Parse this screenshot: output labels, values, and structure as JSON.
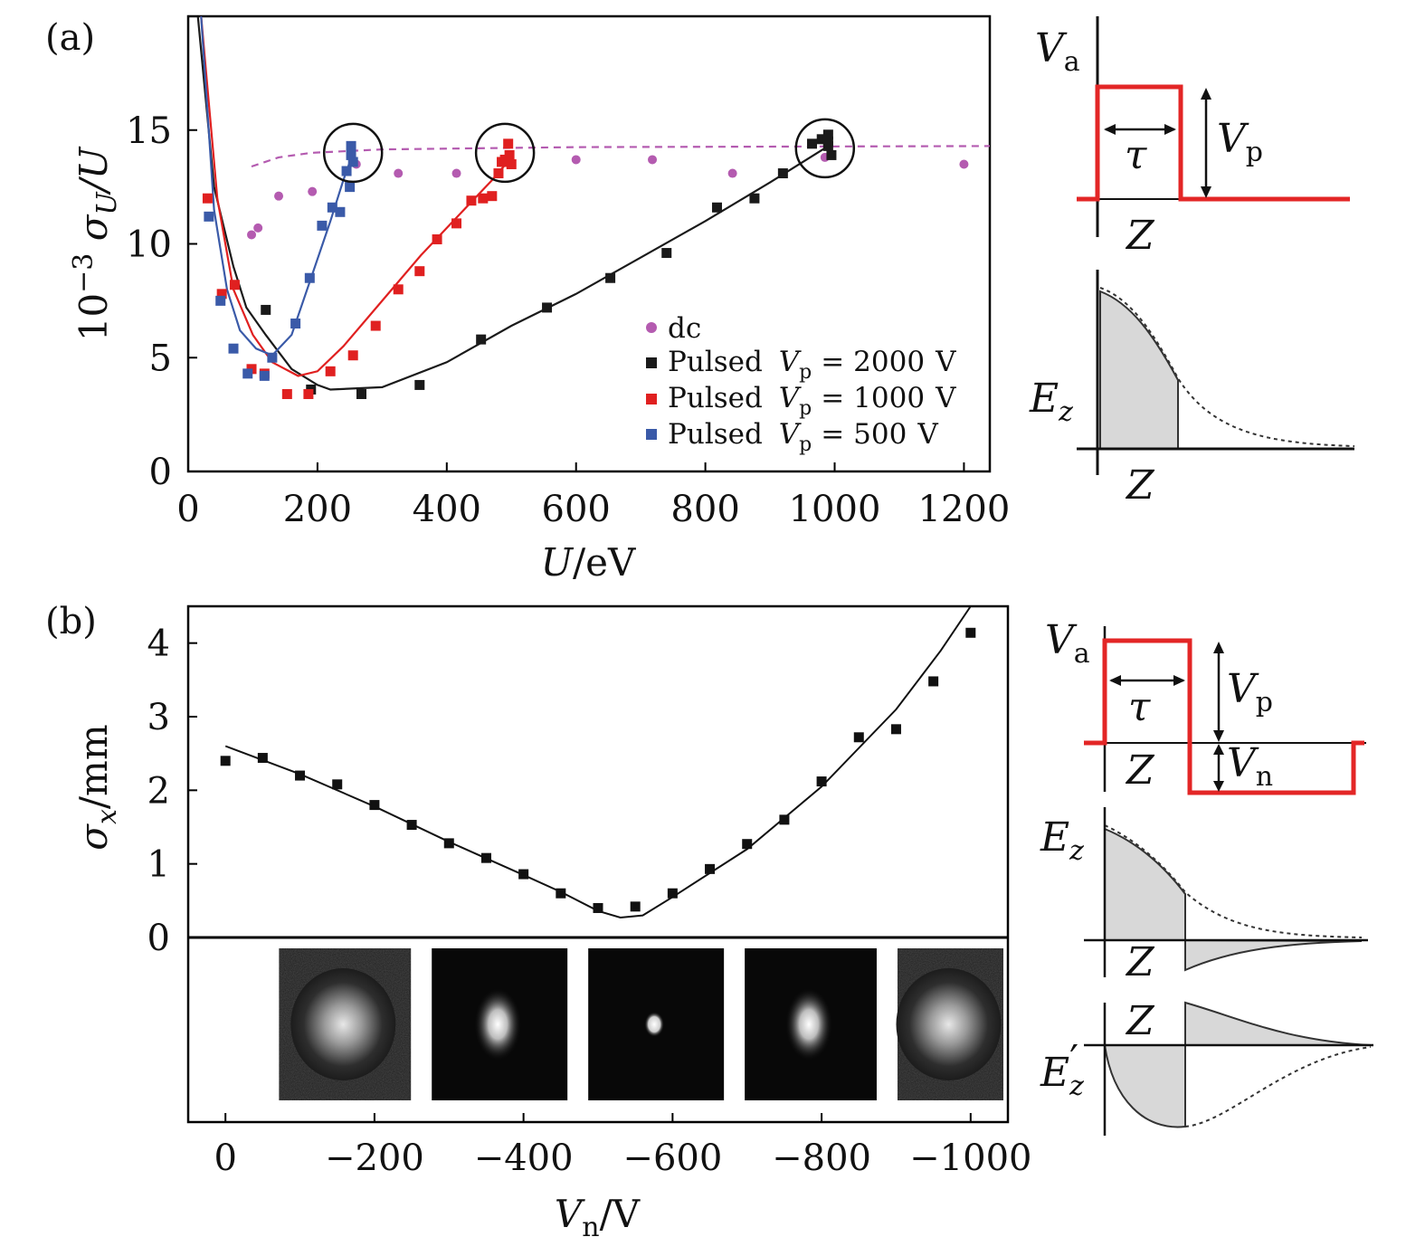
{
  "panel_labels": {
    "a": "(a)",
    "b": "(b)"
  },
  "chart_data": [
    {
      "id": "a",
      "type": "scatter",
      "xlabel": {
        "var": "U",
        "unit": "/eV"
      },
      "ylabel": {
        "prefix": "10",
        "exp": "−3",
        "sigma": "σ",
        "sub": "U",
        "suffix": "/U"
      },
      "xlim": [
        0,
        1240
      ],
      "ylim": [
        0,
        20
      ],
      "xticks": [
        0,
        200,
        400,
        600,
        800,
        1000,
        1200
      ],
      "yticks": [
        0,
        5,
        10,
        15
      ],
      "series": [
        {
          "name": "dc",
          "color": "#b45bb0",
          "marker": "circle",
          "points": [
            [
              98,
              10.4
            ],
            [
              108,
              10.7
            ],
            [
              140,
              12.1
            ],
            [
              192,
              12.3
            ],
            [
              260,
              13.5
            ],
            [
              325,
              13.1
            ],
            [
              415,
              13.1
            ],
            [
              600,
              13.7
            ],
            [
              718,
              13.7
            ],
            [
              842,
              13.1
            ],
            [
              985,
              13.8
            ],
            [
              1200,
              13.5
            ]
          ],
          "line": [
            [
              98,
              13.4
            ],
            [
              140,
              13.8
            ],
            [
              190,
              14.0
            ],
            [
              300,
              14.15
            ],
            [
              600,
              14.25
            ],
            [
              1240,
              14.3
            ]
          ]
        },
        {
          "name": "Pulsed V_p = 2000 V",
          "color": "#1a1a1a",
          "marker": "square",
          "points": [
            [
              120,
              7.1
            ],
            [
              190,
              3.6
            ],
            [
              268,
              3.4
            ],
            [
              358,
              3.8
            ],
            [
              453,
              5.8
            ],
            [
              555,
              7.2
            ],
            [
              653,
              8.5
            ],
            [
              740,
              9.6
            ],
            [
              818,
              11.6
            ],
            [
              876,
              12.0
            ],
            [
              920,
              13.1
            ],
            [
              965,
              14.4
            ],
            [
              980,
              14.6
            ],
            [
              990,
              14.3
            ],
            [
              990,
              14.8
            ],
            [
              995,
              13.9
            ],
            [
              990,
              14.5
            ]
          ],
          "line": [
            [
              15,
              20
            ],
            [
              40,
              12.5
            ],
            [
              70,
              9.0
            ],
            [
              90,
              7.2
            ],
            [
              120,
              6.0
            ],
            [
              160,
              4.5
            ],
            [
              200,
              3.8
            ],
            [
              220,
              3.6
            ],
            [
              300,
              3.7
            ],
            [
              400,
              4.8
            ],
            [
              500,
              6.4
            ],
            [
              600,
              7.8
            ],
            [
              700,
              9.4
            ],
            [
              800,
              11.0
            ],
            [
              900,
              12.7
            ],
            [
              990,
              14.3
            ]
          ]
        },
        {
          "name": "Pulsed V_p = 1000 V",
          "color": "#e02020",
          "marker": "square",
          "points": [
            [
              30,
              12.0
            ],
            [
              52,
              7.8
            ],
            [
              72,
              8.2
            ],
            [
              98,
              4.5
            ],
            [
              118,
              4.3
            ],
            [
              153,
              3.4
            ],
            [
              186,
              3.4
            ],
            [
              220,
              4.4
            ],
            [
              255,
              5.1
            ],
            [
              290,
              6.4
            ],
            [
              325,
              8.0
            ],
            [
              358,
              8.8
            ],
            [
              385,
              10.2
            ],
            [
              415,
              10.9
            ],
            [
              438,
              11.9
            ],
            [
              456,
              12.0
            ],
            [
              470,
              12.1
            ],
            [
              480,
              13.1
            ],
            [
              485,
              13.6
            ],
            [
              490,
              13.7
            ],
            [
              495,
              14.4
            ],
            [
              497,
              13.9
            ],
            [
              500,
              13.5
            ]
          ],
          "line": [
            [
              20,
              20
            ],
            [
              45,
              12.0
            ],
            [
              70,
              8.0
            ],
            [
              100,
              6.0
            ],
            [
              130,
              4.8
            ],
            [
              170,
              4.2
            ],
            [
              200,
              4.4
            ],
            [
              240,
              5.5
            ],
            [
              300,
              7.5
            ],
            [
              360,
              9.5
            ],
            [
              420,
              11.3
            ],
            [
              470,
              12.8
            ],
            [
              500,
              13.8
            ]
          ]
        },
        {
          "name": "Pulsed V_p = 500 V",
          "color": "#3a5aa8",
          "marker": "square",
          "points": [
            [
              32,
              11.2
            ],
            [
              50,
              7.5
            ],
            [
              70,
              5.4
            ],
            [
              92,
              4.3
            ],
            [
              118,
              4.2
            ],
            [
              130,
              5.0
            ],
            [
              166,
              6.5
            ],
            [
              188,
              8.5
            ],
            [
              207,
              10.8
            ],
            [
              223,
              11.6
            ],
            [
              235,
              11.4
            ],
            [
              245,
              13.2
            ],
            [
              250,
              12.5
            ],
            [
              252,
              14.3
            ],
            [
              255,
              13.6
            ],
            [
              252,
              13.9
            ]
          ],
          "line": [
            [
              20,
              20
            ],
            [
              40,
              11.5
            ],
            [
              60,
              8.0
            ],
            [
              80,
              6.2
            ],
            [
              105,
              5.4
            ],
            [
              130,
              5.1
            ],
            [
              160,
              6.0
            ],
            [
              190,
              8.5
            ],
            [
              220,
              11.0
            ],
            [
              240,
              12.8
            ],
            [
              255,
              14.0
            ]
          ]
        }
      ],
      "circles": [
        [
          255,
          14.0
        ],
        [
          490,
          14.0
        ],
        [
          985,
          14.2
        ]
      ]
    },
    {
      "id": "b",
      "type": "scatter",
      "xlabel": {
        "var": "V",
        "sub": "n",
        "unit": "/V"
      },
      "ylabel": {
        "var": "σ",
        "sub": "x",
        "unit": "/mm"
      },
      "xlim": [
        50,
        -1050
      ],
      "ylim": [
        0,
        4.5
      ],
      "xticks": [
        0,
        -200,
        -400,
        -600,
        -800,
        -1000
      ],
      "xtick_labels": [
        "0",
        "−200",
        "−400",
        "−600",
        "−800",
        "−1000"
      ],
      "yticks": [
        0,
        1,
        2,
        3,
        4
      ],
      "points": [
        [
          0,
          2.4
        ],
        [
          -50,
          2.44
        ],
        [
          -100,
          2.2
        ],
        [
          -150,
          2.08
        ],
        [
          -200,
          1.8
        ],
        [
          -250,
          1.53
        ],
        [
          -300,
          1.28
        ],
        [
          -350,
          1.08
        ],
        [
          -400,
          0.86
        ],
        [
          -450,
          0.6
        ],
        [
          -500,
          0.4
        ],
        [
          -550,
          0.42
        ],
        [
          -600,
          0.6
        ],
        [
          -650,
          0.93
        ],
        [
          -700,
          1.27
        ],
        [
          -750,
          1.6
        ],
        [
          -800,
          2.12
        ],
        [
          -850,
          2.72
        ],
        [
          -900,
          2.83
        ],
        [
          -950,
          3.48
        ],
        [
          -1000,
          4.14
        ]
      ],
      "fit": [
        [
          0,
          2.6
        ],
        [
          -100,
          2.22
        ],
        [
          -200,
          1.78
        ],
        [
          -300,
          1.3
        ],
        [
          -400,
          0.85
        ],
        [
          -450,
          0.62
        ],
        [
          -500,
          0.36
        ],
        [
          -530,
          0.27
        ],
        [
          -560,
          0.3
        ],
        [
          -600,
          0.55
        ],
        [
          -700,
          1.2
        ],
        [
          -800,
          2.05
        ],
        [
          -900,
          3.1
        ],
        [
          -960,
          3.9
        ],
        [
          -1000,
          4.5
        ]
      ],
      "spot_images": [
        {
          "x_start": -50,
          "x_end": -255,
          "spot_size": "large"
        },
        {
          "x_start": -255,
          "x_end": -465,
          "spot_size": "medium"
        },
        {
          "x_start": -465,
          "x_end": -675,
          "spot_size": "small"
        },
        {
          "x_start": -675,
          "x_end": -880,
          "spot_size": "medium"
        },
        {
          "x_start": -880,
          "x_end": -1050,
          "spot_size": "large"
        }
      ]
    }
  ],
  "legend_text": {
    "pulsed": "Pulsed",
    "vp_var": "V",
    "vp_sub": "p",
    "eq": "=",
    "unit": "V",
    "dc": "dc"
  },
  "legend": [
    {
      "label": "dc"
    },
    {
      "value": "2000"
    },
    {
      "value": "1000"
    },
    {
      "value": "500"
    }
  ],
  "schematics": {
    "va": {
      "var": "V",
      "sub": "a"
    },
    "vp": {
      "var": "V",
      "sub": "p"
    },
    "vn": {
      "var": "V",
      "sub": "n"
    },
    "tau": "τ",
    "z": "Z",
    "ez": {
      "var": "E",
      "sub": "z"
    },
    "ezp": {
      "var": "E",
      "prime": "′",
      "sub": "z"
    }
  },
  "colors": {
    "pulse": "#e32626",
    "shade": "#d8d8d8",
    "ink": "#111111"
  }
}
